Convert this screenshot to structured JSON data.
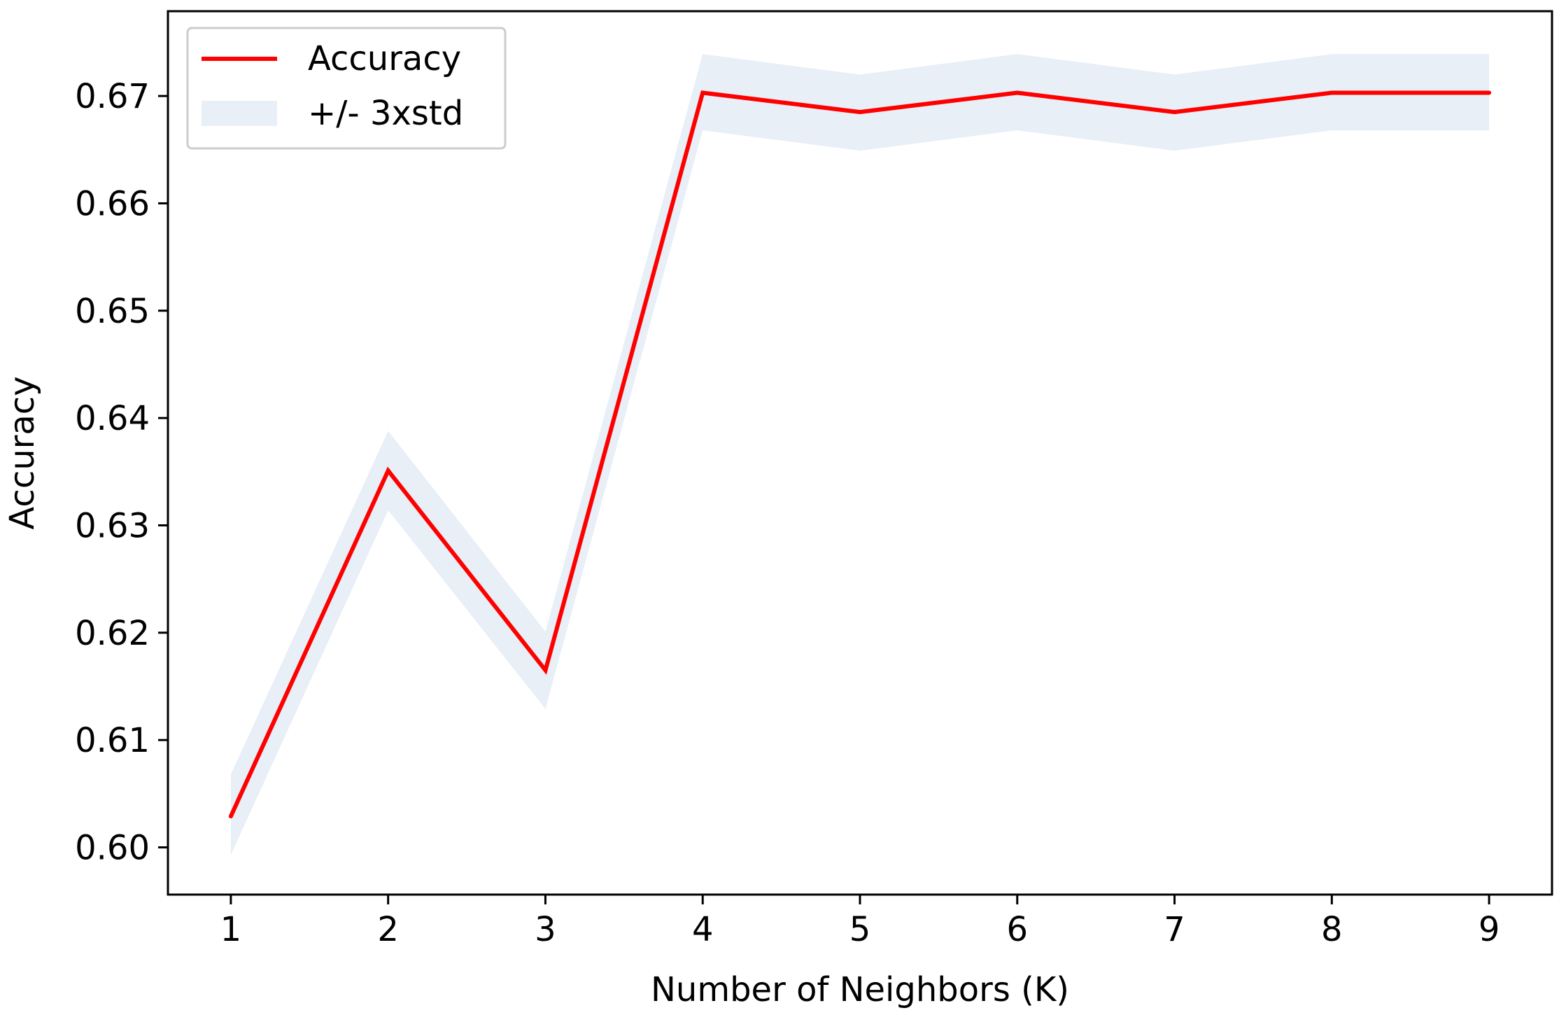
{
  "colors": {
    "line": "#ff0000",
    "band": "#e8eff7",
    "axis": "#000000",
    "legend_border": "#cccccc",
    "background": "#ffffff"
  },
  "chart_data": {
    "type": "line",
    "title": "",
    "xlabel": "Number of Neighbors (K)",
    "ylabel": "Accuracy",
    "x": [
      1,
      2,
      3,
      4,
      5,
      6,
      7,
      8,
      9
    ],
    "xticks": [
      "1",
      "2",
      "3",
      "4",
      "5",
      "6",
      "7",
      "8",
      "9"
    ],
    "yticks": [
      "0.60",
      "0.61",
      "0.62",
      "0.63",
      "0.64",
      "0.65",
      "0.66",
      "0.67"
    ],
    "xlim": [
      0.6,
      9.4
    ],
    "ylim": [
      0.5956,
      0.6779
    ],
    "grid": false,
    "legend_position": "top-left",
    "series": [
      {
        "name": "Accuracy",
        "kind": "line",
        "values": [
          0.6029,
          0.6351,
          0.6165,
          0.6703,
          0.6685,
          0.6703,
          0.6685,
          0.6703,
          0.6703
        ]
      },
      {
        "name": "+/- 3xstd",
        "kind": "band",
        "lower": [
          0.5993,
          0.6314,
          0.6129,
          0.6668,
          0.6649,
          0.6668,
          0.6649,
          0.6668,
          0.6668
        ],
        "upper": [
          0.6068,
          0.6388,
          0.6201,
          0.6739,
          0.672,
          0.6739,
          0.672,
          0.6739,
          0.6739
        ]
      }
    ]
  }
}
